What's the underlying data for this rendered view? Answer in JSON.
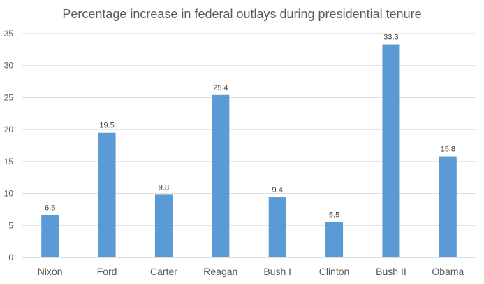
{
  "chart_data": {
    "type": "bar",
    "title": "Percentage increase in federal outlays during presidential tenure",
    "xlabel": "",
    "ylabel": "",
    "categories": [
      "Nixon",
      "Ford",
      "Carter",
      "Reagan",
      "Bush I",
      "Clinton",
      "Bush II",
      "Obama"
    ],
    "values": [
      6.6,
      19.5,
      9.8,
      25.4,
      9.4,
      5.5,
      33.3,
      15.8
    ],
    "data_labels": [
      "6.6",
      "19.5",
      "9.8",
      "25.4",
      "9.4",
      "5.5",
      "33.3",
      "15.8"
    ],
    "ylim": [
      0,
      35
    ],
    "yticks": [
      0,
      5,
      10,
      15,
      20,
      25,
      30,
      35
    ],
    "ytick_labels": [
      "0",
      "5",
      "10",
      "15",
      "20",
      "25",
      "30",
      "35"
    ],
    "grid": true,
    "legend": "none",
    "bar_color": "#5b9bd5"
  }
}
